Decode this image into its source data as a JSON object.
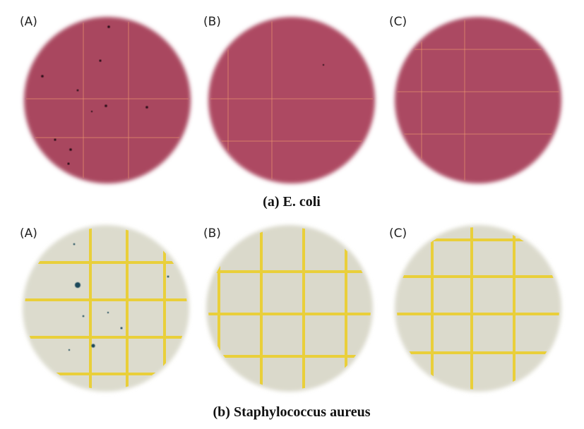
{
  "rows": [
    {
      "panels": [
        {
          "label": "(A)"
        },
        {
          "label": "(B)"
        },
        {
          "label": "(C)"
        }
      ],
      "caption": "(a) E. coli"
    },
    {
      "panels": [
        {
          "label": "(A)"
        },
        {
          "label": "(B)"
        },
        {
          "label": "(C)"
        }
      ],
      "caption": "(b) Staphylococcus aureus"
    }
  ]
}
